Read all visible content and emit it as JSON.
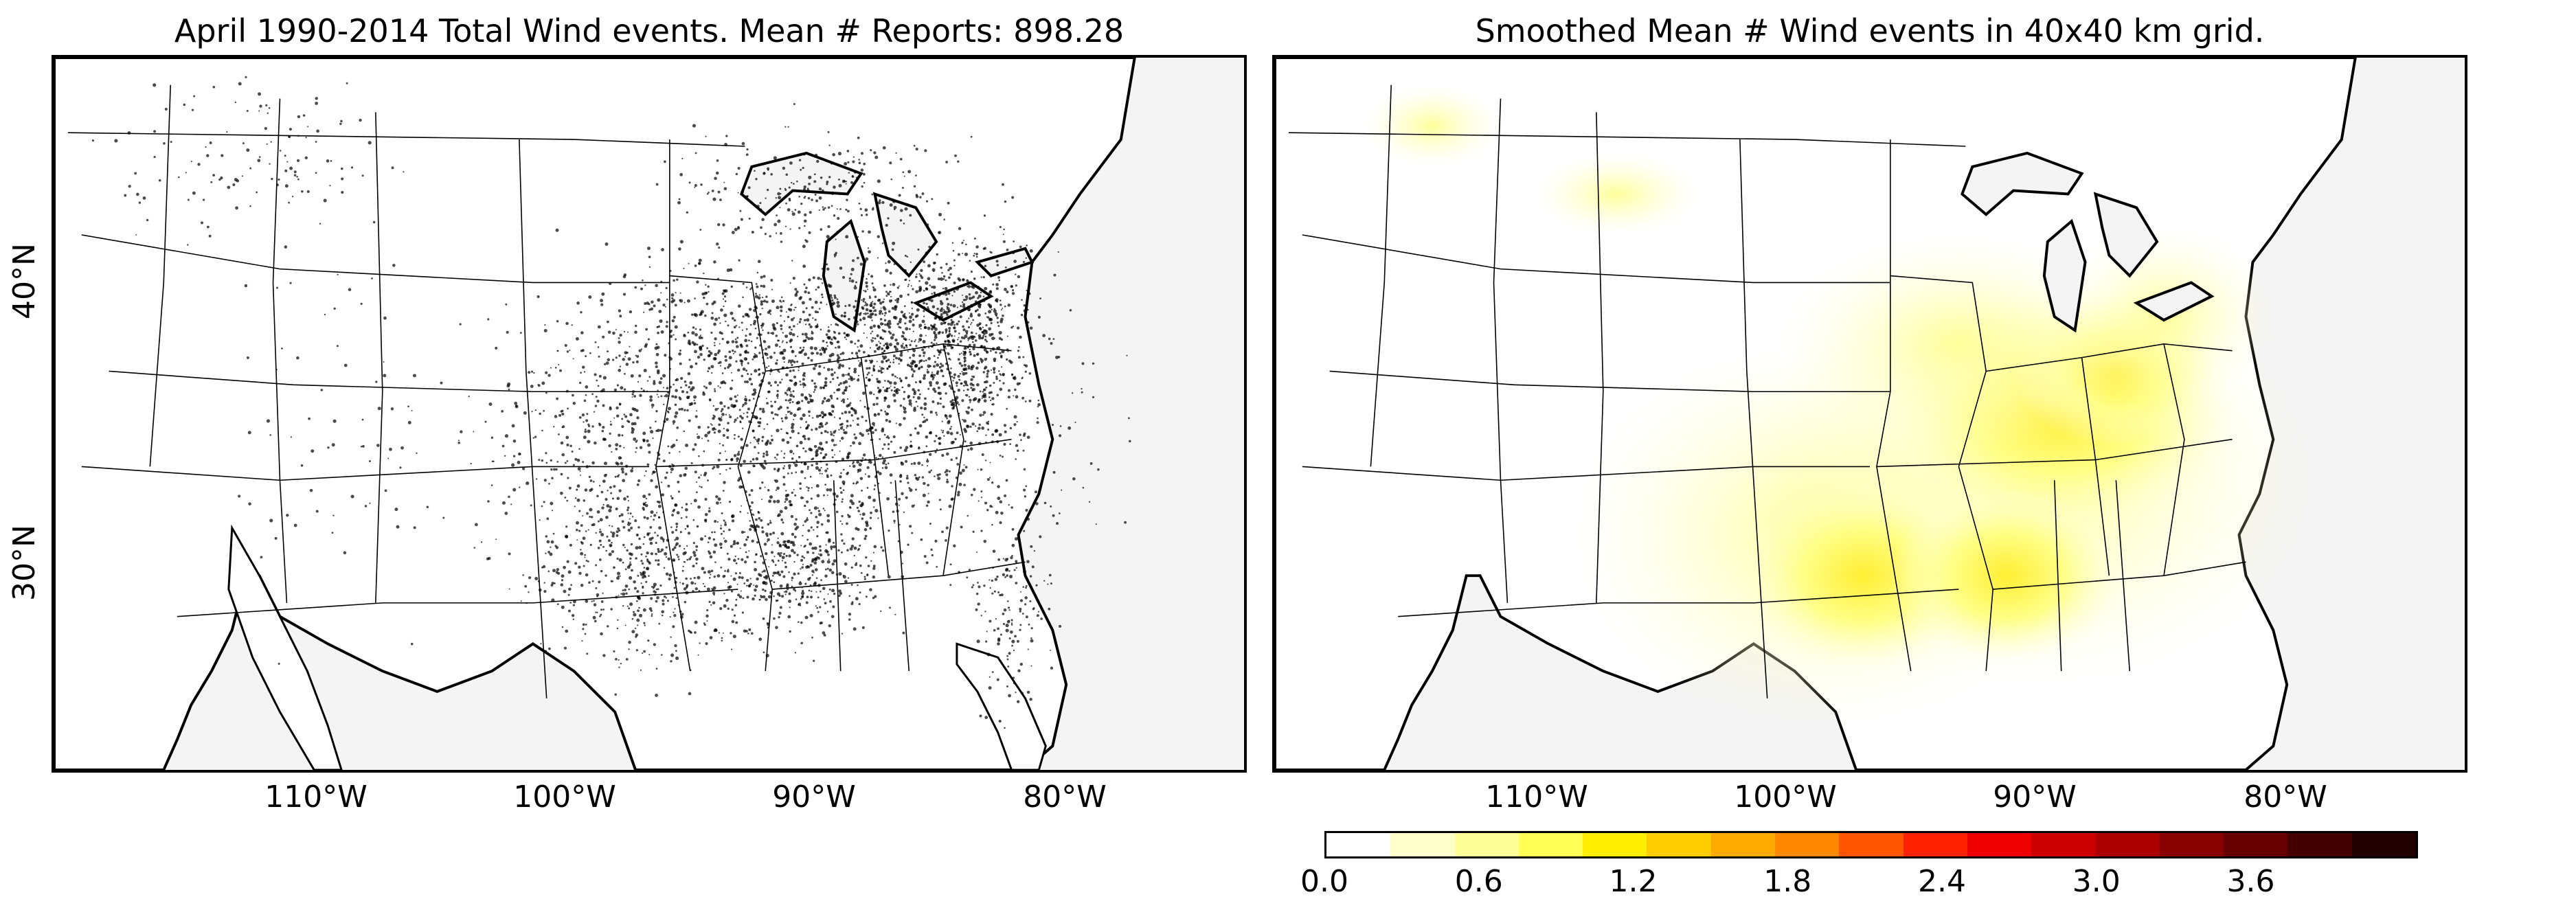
{
  "left_panel": {
    "title": "April 1990-2014 Total Wind events. Mean # Reports: 898.28"
  },
  "right_panel": {
    "title": "Smoothed Mean # Wind events in 40x40 km grid."
  },
  "lon_labels": [
    "110°W",
    "100°W",
    "90°W",
    "80°W"
  ],
  "lat_labels": [
    "40°N",
    "30°N"
  ],
  "colorbar": {
    "ticks": [
      "0.0",
      "0.6",
      "1.2",
      "1.8",
      "2.4",
      "3.0",
      "3.6"
    ],
    "colors": [
      "#ffffff",
      "#ffffcc",
      "#ffff99",
      "#ffff55",
      "#ffee00",
      "#ffcc00",
      "#ffaa00",
      "#ff8800",
      "#ff5500",
      "#ff2200",
      "#ee0000",
      "#cc0000",
      "#aa0000",
      "#880000",
      "#660000",
      "#440000",
      "#220000"
    ]
  },
  "colors": {
    "land": "#ffffff",
    "ocean": "#f4f4f4",
    "dots": "#000000",
    "density_low": "#ffffdd",
    "density_mid": "#ffff88",
    "density_high": "#ffee33"
  }
}
